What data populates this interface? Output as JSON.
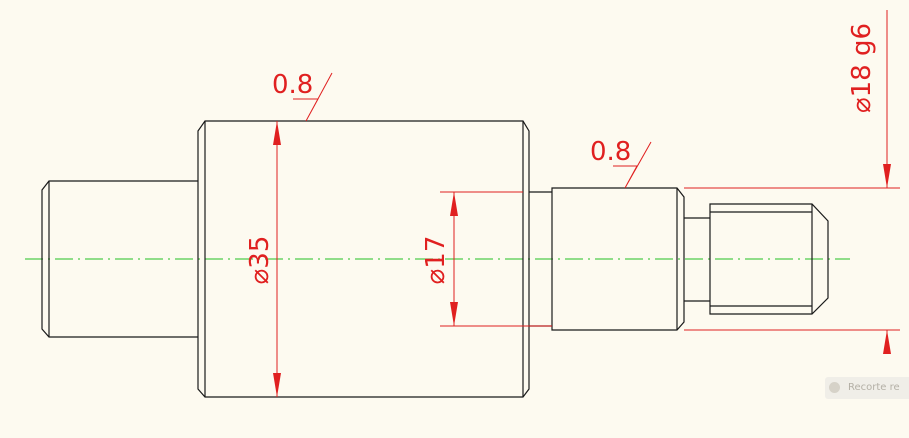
{
  "colors": {
    "background": "#fdfaf0",
    "part_outline": "#1a1a1a",
    "dimension": "#e02020",
    "centerline": "#22c022"
  },
  "surface_finish": {
    "left": "0.8",
    "right": "0.8"
  },
  "dimensions": {
    "d35": "⌀35",
    "d17": "⌀17",
    "d18": "⌀18 g6"
  },
  "watermark": {
    "text": "Recorte re"
  }
}
